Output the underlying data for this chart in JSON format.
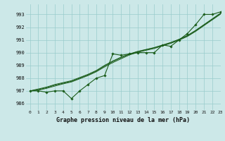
{
  "title": "Graphe pression niveau de la mer (hPa)",
  "bg_color": "#cce8e8",
  "grid_color": "#99cccc",
  "line_color": "#1a5c1a",
  "xlim": [
    -0.5,
    23
  ],
  "ylim": [
    985.5,
    993.8
  ],
  "yticks": [
    986,
    987,
    988,
    989,
    990,
    991,
    992,
    993
  ],
  "xticks": [
    0,
    1,
    2,
    3,
    4,
    5,
    6,
    7,
    8,
    9,
    10,
    11,
    12,
    13,
    14,
    15,
    16,
    17,
    18,
    19,
    20,
    21,
    22,
    23
  ],
  "series": {
    "main": [
      987.0,
      987.0,
      986.9,
      987.0,
      987.0,
      986.4,
      987.0,
      987.5,
      988.0,
      988.2,
      989.9,
      989.8,
      989.9,
      990.0,
      990.0,
      990.0,
      990.6,
      990.5,
      991.0,
      991.5,
      992.2,
      993.0,
      993.0,
      993.2
    ],
    "smooth1": [
      987.0,
      987.15,
      987.3,
      987.5,
      987.65,
      987.8,
      988.05,
      988.3,
      988.6,
      989.0,
      989.35,
      989.65,
      989.9,
      990.1,
      990.25,
      990.4,
      990.6,
      990.8,
      991.05,
      991.35,
      991.75,
      992.2,
      992.65,
      993.1
    ],
    "smooth2": [
      987.0,
      987.1,
      987.25,
      987.45,
      987.6,
      987.75,
      988.0,
      988.25,
      988.55,
      988.95,
      989.3,
      989.6,
      989.88,
      990.08,
      990.23,
      990.38,
      990.58,
      990.78,
      991.03,
      991.32,
      991.72,
      992.17,
      992.62,
      993.07
    ],
    "smooth3": [
      987.0,
      987.05,
      987.2,
      987.38,
      987.55,
      987.7,
      987.95,
      988.2,
      988.5,
      988.88,
      989.22,
      989.52,
      989.82,
      990.02,
      990.18,
      990.33,
      990.53,
      990.73,
      990.98,
      991.27,
      991.67,
      992.12,
      992.57,
      993.02
    ]
  }
}
